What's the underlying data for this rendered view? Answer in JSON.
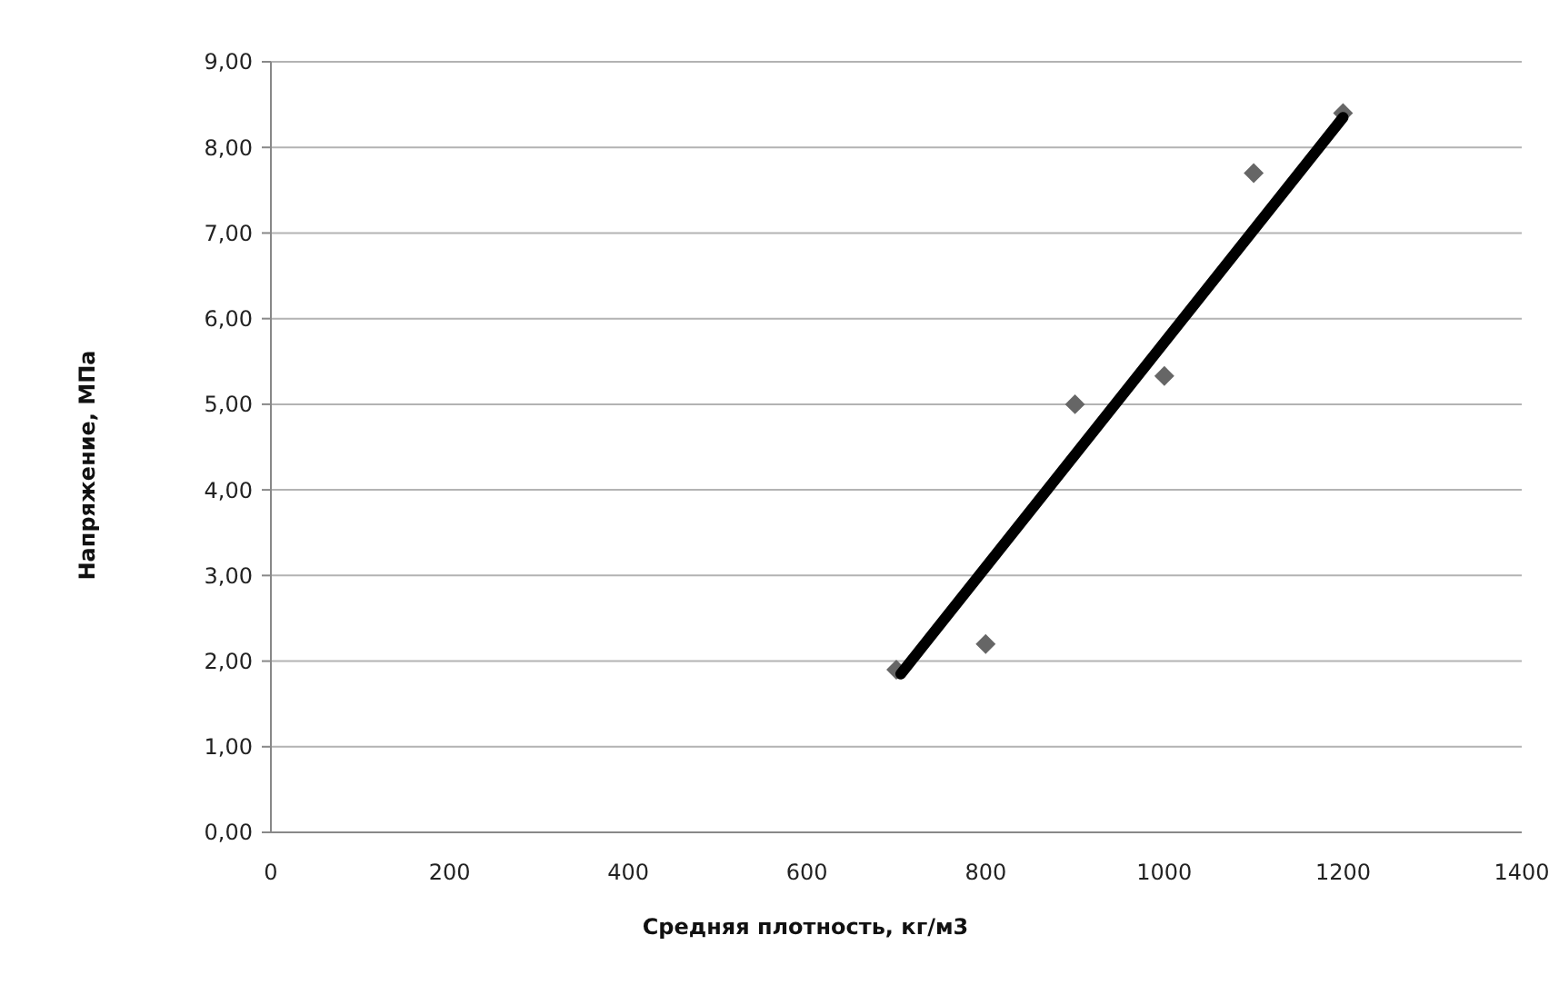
{
  "chart_data": {
    "type": "scatter",
    "xlabel": "Средняя плотность, кг/м3",
    "ylabel": "Напряжение, МПа",
    "xlim": [
      0,
      1400
    ],
    "xticks": [
      0,
      200,
      400,
      600,
      800,
      1000,
      1200,
      1400
    ],
    "ylim": [
      0,
      9
    ],
    "yticks": [
      {
        "value": 0,
        "label": "0,00"
      },
      {
        "value": 1,
        "label": "1,00"
      },
      {
        "value": 2,
        "label": "2,00"
      },
      {
        "value": 3,
        "label": "3,00"
      },
      {
        "value": 4,
        "label": "4,00"
      },
      {
        "value": 5,
        "label": "5,00"
      },
      {
        "value": 6,
        "label": "6,00"
      },
      {
        "value": 7,
        "label": "7,00"
      },
      {
        "value": 8,
        "label": "8,00"
      },
      {
        "value": 9,
        "label": "9,00"
      }
    ],
    "grid": "y",
    "marker": "diamond",
    "series": [
      {
        "color": "#666666",
        "x": [
          700,
          800,
          900,
          1000,
          1100,
          1200
        ],
        "values": [
          1.9,
          2.2,
          5.0,
          5.33,
          7.7,
          8.4
        ]
      },
      {
        "type": "line",
        "color": "#000000",
        "marker": "none",
        "line_style": "solid",
        "x": [
          705,
          1200
        ],
        "values": [
          1.85,
          8.35
        ]
      }
    ]
  }
}
